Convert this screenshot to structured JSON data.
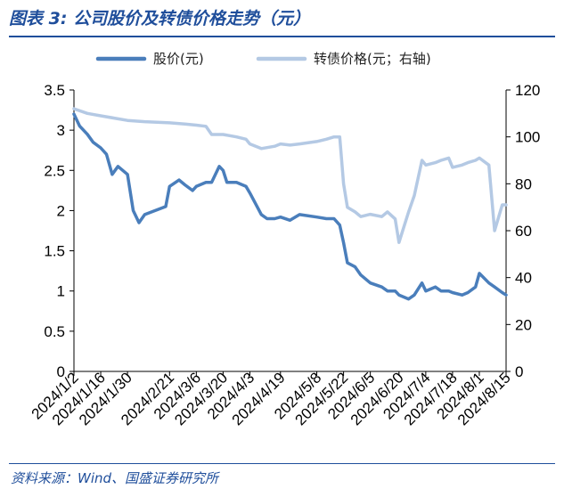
{
  "header": {
    "title": "图表 3:  公司股价及转债价格走势（元）"
  },
  "footer": {
    "source": "资料来源：Wind、国盛证券研究所"
  },
  "colors": {
    "stock": "#4a7ebb",
    "bond": "#b4c9e4",
    "accent": "#1f4e9b"
  },
  "chart_data": {
    "type": "line",
    "title": "",
    "legend_position": "top",
    "x_ticks": [
      "2024/1/2",
      "2024/1/16",
      "2024/1/30",
      "2024/2/21",
      "2024/3/6",
      "2024/3/20",
      "2024/4/3",
      "2024/4/19",
      "2024/5/8",
      "2024/5/22",
      "2024/6/5",
      "2024/6/20",
      "2024/7/4",
      "2024/7/18",
      "2024/8/1",
      "2024/8/15"
    ],
    "y_left": {
      "min": 0,
      "max": 3.5,
      "ticks": [
        "0",
        "0.5",
        "1",
        "1.5",
        "2",
        "2.5",
        "3",
        "3.5"
      ]
    },
    "y_right": {
      "min": 0,
      "max": 120,
      "ticks": [
        "0",
        "20",
        "40",
        "60",
        "80",
        "100",
        "120"
      ]
    },
    "series": [
      {
        "name": "股价(元)",
        "axis": "left",
        "color": "#4a7ebb",
        "points": [
          [
            "2024/1/2",
            3.2
          ],
          [
            "2024/1/5",
            3.05
          ],
          [
            "2024/1/9",
            2.95
          ],
          [
            "2024/1/12",
            2.85
          ],
          [
            "2024/1/16",
            2.78
          ],
          [
            "2024/1/19",
            2.7
          ],
          [
            "2024/1/22",
            2.45
          ],
          [
            "2024/1/25",
            2.55
          ],
          [
            "2024/1/30",
            2.45
          ],
          [
            "2024/2/2",
            2.0
          ],
          [
            "2024/2/5",
            1.85
          ],
          [
            "2024/2/8",
            1.95
          ],
          [
            "2024/2/19",
            2.05
          ],
          [
            "2024/2/21",
            2.3
          ],
          [
            "2024/2/26",
            2.38
          ],
          [
            "2024/2/29",
            2.32
          ],
          [
            "2024/3/4",
            2.25
          ],
          [
            "2024/3/6",
            2.3
          ],
          [
            "2024/3/11",
            2.35
          ],
          [
            "2024/3/14",
            2.35
          ],
          [
            "2024/3/18",
            2.55
          ],
          [
            "2024/3/20",
            2.5
          ],
          [
            "2024/3/22",
            2.35
          ],
          [
            "2024/3/27",
            2.35
          ],
          [
            "2024/4/1",
            2.3
          ],
          [
            "2024/4/3",
            2.22
          ],
          [
            "2024/4/9",
            1.95
          ],
          [
            "2024/4/12",
            1.9
          ],
          [
            "2024/4/16",
            1.9
          ],
          [
            "2024/4/19",
            1.92
          ],
          [
            "2024/4/24",
            1.88
          ],
          [
            "2024/4/29",
            1.95
          ],
          [
            "2024/5/8",
            1.92
          ],
          [
            "2024/5/13",
            1.9
          ],
          [
            "2024/5/17",
            1.9
          ],
          [
            "2024/5/20",
            1.82
          ],
          [
            "2024/5/22",
            1.6
          ],
          [
            "2024/5/24",
            1.35
          ],
          [
            "2024/5/28",
            1.3
          ],
          [
            "2024/5/31",
            1.2
          ],
          [
            "2024/6/5",
            1.1
          ],
          [
            "2024/6/11",
            1.05
          ],
          [
            "2024/6/14",
            1.0
          ],
          [
            "2024/6/18",
            1.0
          ],
          [
            "2024/6/20",
            0.95
          ],
          [
            "2024/6/25",
            0.9
          ],
          [
            "2024/6/28",
            0.95
          ],
          [
            "2024/7/2",
            1.1
          ],
          [
            "2024/7/4",
            1.0
          ],
          [
            "2024/7/9",
            1.05
          ],
          [
            "2024/7/12",
            1.0
          ],
          [
            "2024/7/16",
            1.0
          ],
          [
            "2024/7/18",
            0.98
          ],
          [
            "2024/7/23",
            0.95
          ],
          [
            "2024/7/26",
            0.98
          ],
          [
            "2024/7/30",
            1.05
          ],
          [
            "2024/8/1",
            1.22
          ],
          [
            "2024/8/6",
            1.1
          ],
          [
            "2024/8/9",
            1.05
          ],
          [
            "2024/8/13",
            0.98
          ],
          [
            "2024/8/15",
            0.95
          ]
        ]
      },
      {
        "name": "转债价格(元；右轴)",
        "axis": "right",
        "color": "#b4c9e4",
        "points": [
          [
            "2024/1/2",
            112
          ],
          [
            "2024/1/9",
            110
          ],
          [
            "2024/1/16",
            109
          ],
          [
            "2024/1/23",
            108
          ],
          [
            "2024/1/30",
            107
          ],
          [
            "2024/2/8",
            106.5
          ],
          [
            "2024/2/21",
            106
          ],
          [
            "2024/2/29",
            105.5
          ],
          [
            "2024/3/6",
            105
          ],
          [
            "2024/3/11",
            104.5
          ],
          [
            "2024/3/14",
            101
          ],
          [
            "2024/3/20",
            101
          ],
          [
            "2024/3/27",
            100
          ],
          [
            "2024/4/1",
            99
          ],
          [
            "2024/4/3",
            97
          ],
          [
            "2024/4/9",
            95
          ],
          [
            "2024/4/16",
            96
          ],
          [
            "2024/4/19",
            97
          ],
          [
            "2024/4/24",
            96.5
          ],
          [
            "2024/4/29",
            97
          ],
          [
            "2024/5/8",
            98
          ],
          [
            "2024/5/13",
            99
          ],
          [
            "2024/5/17",
            100
          ],
          [
            "2024/5/20",
            100
          ],
          [
            "2024/5/22",
            80
          ],
          [
            "2024/5/24",
            70
          ],
          [
            "2024/5/28",
            68
          ],
          [
            "2024/5/31",
            66
          ],
          [
            "2024/6/5",
            67
          ],
          [
            "2024/6/11",
            66
          ],
          [
            "2024/6/14",
            68
          ],
          [
            "2024/6/18",
            65
          ],
          [
            "2024/6/20",
            55
          ],
          [
            "2024/6/25",
            68
          ],
          [
            "2024/6/28",
            75
          ],
          [
            "2024/7/2",
            90
          ],
          [
            "2024/7/4",
            88
          ],
          [
            "2024/7/9",
            89
          ],
          [
            "2024/7/12",
            90
          ],
          [
            "2024/7/16",
            91
          ],
          [
            "2024/7/18",
            87
          ],
          [
            "2024/7/23",
            88
          ],
          [
            "2024/7/26",
            89
          ],
          [
            "2024/7/30",
            90
          ],
          [
            "2024/8/1",
            91
          ],
          [
            "2024/8/6",
            88
          ],
          [
            "2024/8/9",
            60
          ],
          [
            "2024/8/13",
            71
          ],
          [
            "2024/8/15",
            71
          ]
        ]
      }
    ]
  }
}
